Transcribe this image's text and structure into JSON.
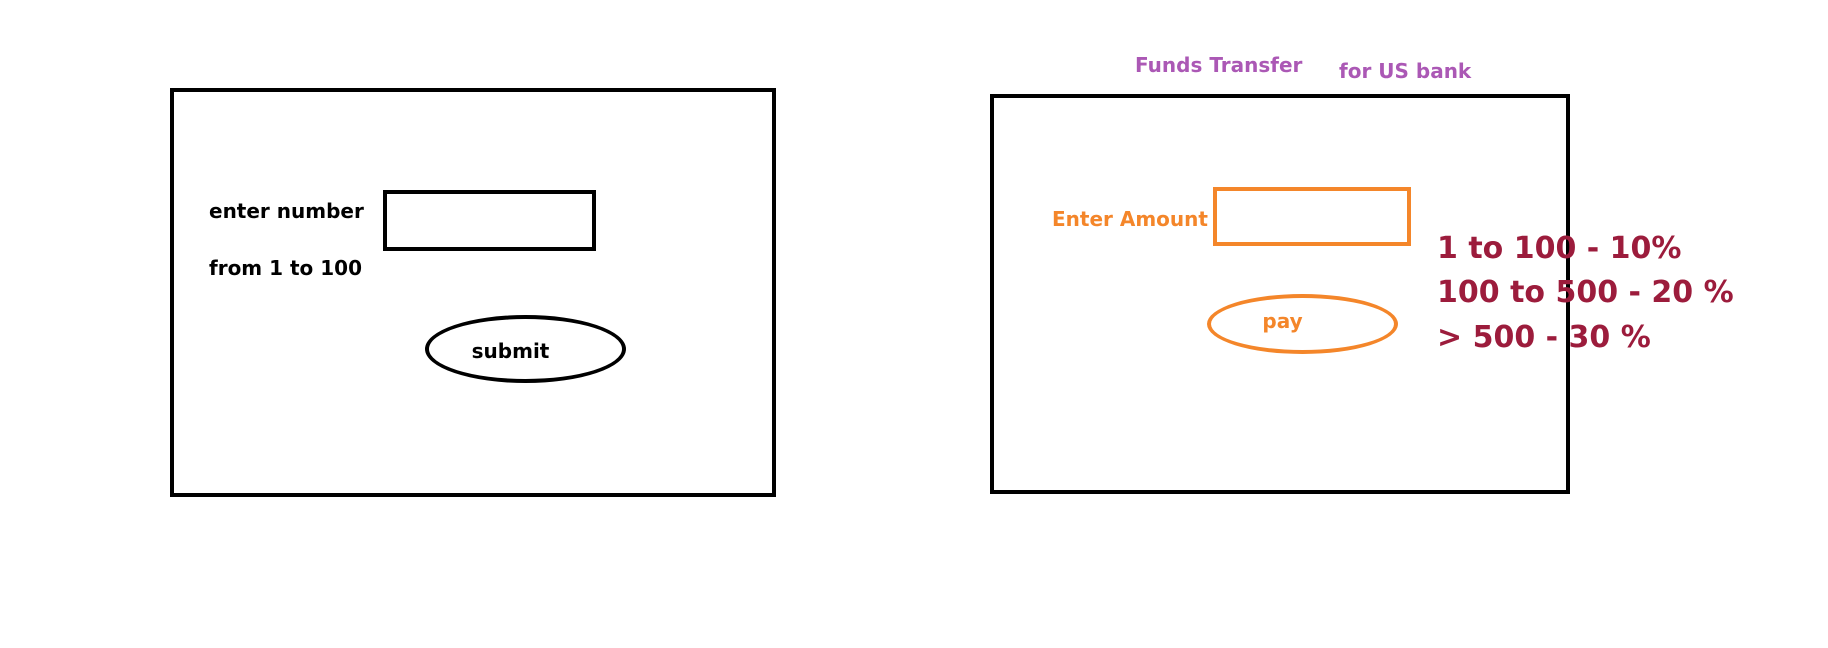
{
  "left_panel": {
    "label_line1": "enter number",
    "label_line2": "from 1 to 100",
    "input_value": "",
    "submit_label": "submit"
  },
  "right_panel": {
    "title": "Funds Transfer",
    "subtitle": "for US bank",
    "amount_label": "Enter Amount",
    "amount_value": "",
    "pay_label": "pay"
  },
  "rates": [
    "1 to 100 - 10%",
    "100 to 500 - 20 %",
    "> 500 - 30 %"
  ],
  "colors": {
    "outline": "#000000",
    "title": "#ab58b5",
    "accent": "#f4862a",
    "rates": "#9c1c3c"
  }
}
